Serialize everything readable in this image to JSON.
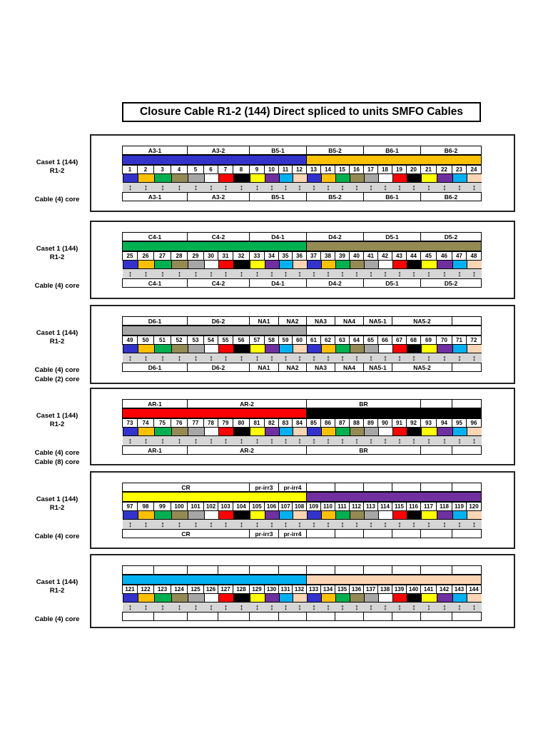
{
  "title": "Closure Cable R1-2 (144)  Direct spliced to units SMFO Cables",
  "fiber_colors": [
    "#3333cc",
    "#ffc000",
    "#00b050",
    "#948a54",
    "#a6a6a6",
    "#ffffff",
    "#ff0000",
    "#000000",
    "#ffff00",
    "#7030a0",
    "#00b0f0",
    "#fcd5b4"
  ],
  "arrow_glyph": "↕",
  "sections": [
    {
      "caset_label": "Caset 1  (144)",
      "r_label": "R1-2",
      "cable_labels": [
        "Cable (4) core"
      ],
      "fiber_start": 1,
      "tube_colors": [
        "#3333cc",
        "#ffc000"
      ],
      "groups": [
        {
          "label": "A3-1",
          "span": 4
        },
        {
          "label": "A3-2",
          "span": 4
        },
        {
          "label": "B5-1",
          "span": 4
        },
        {
          "label": "B5-2",
          "span": 4
        },
        {
          "label": "B6-1",
          "span": 4
        },
        {
          "label": "B6-2",
          "span": 4
        }
      ]
    },
    {
      "caset_label": "Caset 1  (144)",
      "r_label": "R1-2",
      "cable_labels": [
        "Cable (4) core"
      ],
      "fiber_start": 25,
      "tube_colors": [
        "#00b050",
        "#948a54"
      ],
      "groups": [
        {
          "label": "C4-1",
          "span": 4
        },
        {
          "label": "C4-2",
          "span": 4
        },
        {
          "label": "D4-1",
          "span": 4
        },
        {
          "label": "D4-2",
          "span": 4
        },
        {
          "label": "D5-1",
          "span": 4
        },
        {
          "label": "D5-2",
          "span": 4
        }
      ]
    },
    {
      "caset_label": "Caset 1  (144)",
      "r_label": "R1-2",
      "cable_labels": [
        "Cable (4) core",
        "Cable (2) core"
      ],
      "fiber_start": 49,
      "tube_colors": [
        "#a6a6a6",
        "#ffffff"
      ],
      "groups": [
        {
          "label": "D6-1",
          "span": 4
        },
        {
          "label": "D6-2",
          "span": 4
        },
        {
          "label": "NA1",
          "span": 2
        },
        {
          "label": "NA2",
          "span": 2
        },
        {
          "label": "NA3",
          "span": 2
        },
        {
          "label": "NA4",
          "span": 2
        },
        {
          "label": "NA5-1",
          "span": 2
        },
        {
          "label": "NA5-2",
          "span": 4
        },
        {
          "label": "",
          "span": 2
        }
      ]
    },
    {
      "caset_label": "Caset 1  (144)",
      "r_label": "R1-2",
      "cable_labels": [
        "Cable (4) core",
        "Cable (8) core"
      ],
      "fiber_start": 73,
      "tube_colors": [
        "#ff0000",
        "#000000"
      ],
      "groups": [
        {
          "label": "AR-1",
          "span": 4
        },
        {
          "label": "AR-2",
          "span": 8
        },
        {
          "label": "BR",
          "span": 8
        },
        {
          "label": "",
          "span": 2
        },
        {
          "label": "",
          "span": 2
        }
      ]
    },
    {
      "caset_label": "Caset 1  (144)",
      "r_label": "R1-2",
      "cable_labels": [
        "Cable (4) core"
      ],
      "fiber_start": 97,
      "tube_colors": [
        "#ffff00",
        "#7030a0"
      ],
      "groups": [
        {
          "label": "CR",
          "span": 8
        },
        {
          "label": "pr-irr3",
          "span": 2
        },
        {
          "label": "pr-irr4",
          "span": 2
        },
        {
          "label": "",
          "span": 2
        },
        {
          "label": "",
          "span": 2
        },
        {
          "label": "",
          "span": 2
        },
        {
          "label": "",
          "span": 2
        },
        {
          "label": "",
          "span": 2
        },
        {
          "label": "",
          "span": 2
        }
      ]
    },
    {
      "caset_label": "Caset 1  (144)",
      "r_label": "R1-2",
      "cable_labels": [
        "Cable (4) core"
      ],
      "fiber_start": 121,
      "tube_colors": [
        "#00b0f0",
        "#fcd5b4"
      ],
      "groups": [
        {
          "label": "",
          "span": 2
        },
        {
          "label": "",
          "span": 2
        },
        {
          "label": "",
          "span": 2
        },
        {
          "label": "",
          "span": 2
        },
        {
          "label": "",
          "span": 2
        },
        {
          "label": "",
          "span": 2
        },
        {
          "label": "",
          "span": 2
        },
        {
          "label": "",
          "span": 2
        },
        {
          "label": "",
          "span": 2
        },
        {
          "label": "",
          "span": 2
        },
        {
          "label": "",
          "span": 2
        },
        {
          "label": "",
          "span": 2
        }
      ]
    }
  ]
}
